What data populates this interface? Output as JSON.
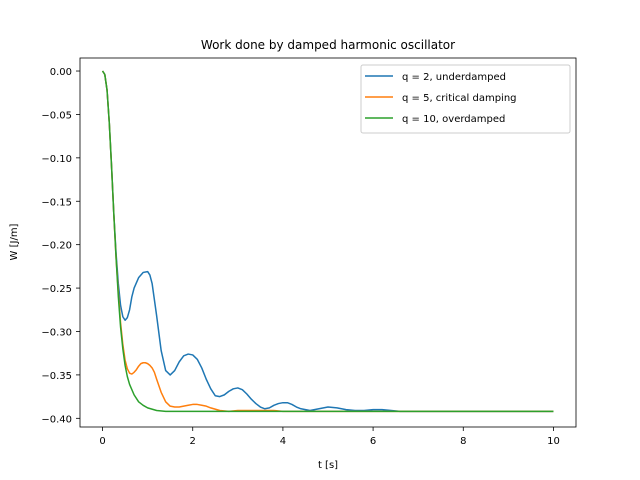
{
  "chart_data": {
    "type": "line",
    "title": "Work done by damped harmonic oscillator",
    "xlabel": "t [s]",
    "ylabel": "W [J/m]",
    "xlim": [
      -0.5,
      10.5
    ],
    "ylim": [
      -0.41,
      0.015
    ],
    "xticks": [
      0,
      2,
      4,
      6,
      8,
      10
    ],
    "yticks": [
      0.0,
      -0.05,
      -0.1,
      -0.15,
      -0.2,
      -0.25,
      -0.3,
      -0.35,
      -0.4
    ],
    "xtick_labels": [
      "0",
      "2",
      "4",
      "6",
      "8",
      "10"
    ],
    "ytick_labels": [
      "0.00",
      "−0.05",
      "−0.10",
      "−0.15",
      "−0.20",
      "−0.25",
      "−0.30",
      "−0.35",
      "−0.40"
    ],
    "grid": false,
    "legend_position": "top-right",
    "series": [
      {
        "name": "q = 2, underdamped",
        "color": "#1f77b4",
        "x": [
          0,
          0.05,
          0.1,
          0.15,
          0.2,
          0.25,
          0.3,
          0.35,
          0.4,
          0.45,
          0.5,
          0.55,
          0.6,
          0.65,
          0.7,
          0.8,
          0.9,
          1.0,
          1.05,
          1.1,
          1.2,
          1.3,
          1.4,
          1.5,
          1.6,
          1.7,
          1.8,
          1.9,
          2.0,
          2.1,
          2.2,
          2.3,
          2.4,
          2.5,
          2.6,
          2.7,
          2.8,
          2.9,
          3.0,
          3.1,
          3.2,
          3.3,
          3.4,
          3.5,
          3.6,
          3.7,
          3.8,
          3.9,
          4.0,
          4.1,
          4.2,
          4.3,
          4.4,
          4.6,
          4.8,
          5.0,
          5.2,
          5.4,
          5.6,
          5.8,
          6.0,
          6.2,
          6.4,
          6.6,
          6.8,
          7.0,
          7.5,
          8.0,
          8.5,
          9.0,
          9.5,
          10.0
        ],
        "y": [
          0.0,
          -0.004,
          -0.022,
          -0.06,
          -0.11,
          -0.165,
          -0.21,
          -0.245,
          -0.27,
          -0.283,
          -0.287,
          -0.284,
          -0.275,
          -0.26,
          -0.25,
          -0.238,
          -0.232,
          -0.231,
          -0.235,
          -0.245,
          -0.282,
          -0.322,
          -0.345,
          -0.35,
          -0.345,
          -0.335,
          -0.328,
          -0.326,
          -0.327,
          -0.332,
          -0.342,
          -0.355,
          -0.366,
          -0.374,
          -0.375,
          -0.373,
          -0.369,
          -0.366,
          -0.365,
          -0.367,
          -0.372,
          -0.378,
          -0.383,
          -0.387,
          -0.389,
          -0.388,
          -0.385,
          -0.383,
          -0.382,
          -0.382,
          -0.384,
          -0.387,
          -0.389,
          -0.391,
          -0.389,
          -0.387,
          -0.388,
          -0.39,
          -0.391,
          -0.391,
          -0.39,
          -0.39,
          -0.391,
          -0.392,
          -0.392,
          -0.392,
          -0.392,
          -0.392,
          -0.392,
          -0.392,
          -0.392,
          -0.392
        ]
      },
      {
        "name": "q = 5, critical damping",
        "color": "#ff7f0e",
        "x": [
          0,
          0.05,
          0.1,
          0.15,
          0.2,
          0.25,
          0.3,
          0.35,
          0.4,
          0.45,
          0.5,
          0.55,
          0.6,
          0.65,
          0.7,
          0.75,
          0.8,
          0.85,
          0.9,
          0.95,
          1.0,
          1.05,
          1.1,
          1.15,
          1.2,
          1.3,
          1.4,
          1.5,
          1.6,
          1.7,
          1.8,
          1.9,
          2.0,
          2.1,
          2.2,
          2.3,
          2.4,
          2.6,
          2.8,
          3.0,
          3.2,
          3.4,
          3.6,
          3.8,
          4.0,
          4.5,
          5.0,
          6.0,
          7.0,
          8.0,
          9.0,
          10.0
        ],
        "y": [
          0.0,
          -0.004,
          -0.022,
          -0.06,
          -0.11,
          -0.165,
          -0.215,
          -0.255,
          -0.29,
          -0.315,
          -0.333,
          -0.343,
          -0.348,
          -0.349,
          -0.347,
          -0.344,
          -0.34,
          -0.337,
          -0.336,
          -0.336,
          -0.337,
          -0.339,
          -0.342,
          -0.347,
          -0.355,
          -0.37,
          -0.381,
          -0.386,
          -0.387,
          -0.387,
          -0.386,
          -0.385,
          -0.384,
          -0.384,
          -0.385,
          -0.386,
          -0.388,
          -0.391,
          -0.392,
          -0.391,
          -0.391,
          -0.391,
          -0.391,
          -0.391,
          -0.392,
          -0.392,
          -0.392,
          -0.392,
          -0.392,
          -0.392,
          -0.392,
          -0.392
        ]
      },
      {
        "name": "q = 10, overdamped",
        "color": "#2ca02c",
        "x": [
          0,
          0.05,
          0.1,
          0.15,
          0.2,
          0.25,
          0.3,
          0.35,
          0.4,
          0.45,
          0.5,
          0.55,
          0.6,
          0.7,
          0.8,
          0.9,
          1.0,
          1.2,
          1.4,
          1.6,
          1.8,
          2.0,
          3.0,
          4.0,
          5.0,
          6.0,
          7.0,
          8.0,
          9.0,
          10.0
        ],
        "y": [
          0.0,
          -0.004,
          -0.022,
          -0.06,
          -0.11,
          -0.165,
          -0.215,
          -0.26,
          -0.295,
          -0.32,
          -0.339,
          -0.352,
          -0.361,
          -0.373,
          -0.381,
          -0.385,
          -0.388,
          -0.391,
          -0.392,
          -0.392,
          -0.392,
          -0.392,
          -0.392,
          -0.392,
          -0.392,
          -0.392,
          -0.392,
          -0.392,
          -0.392,
          -0.392
        ]
      }
    ]
  }
}
